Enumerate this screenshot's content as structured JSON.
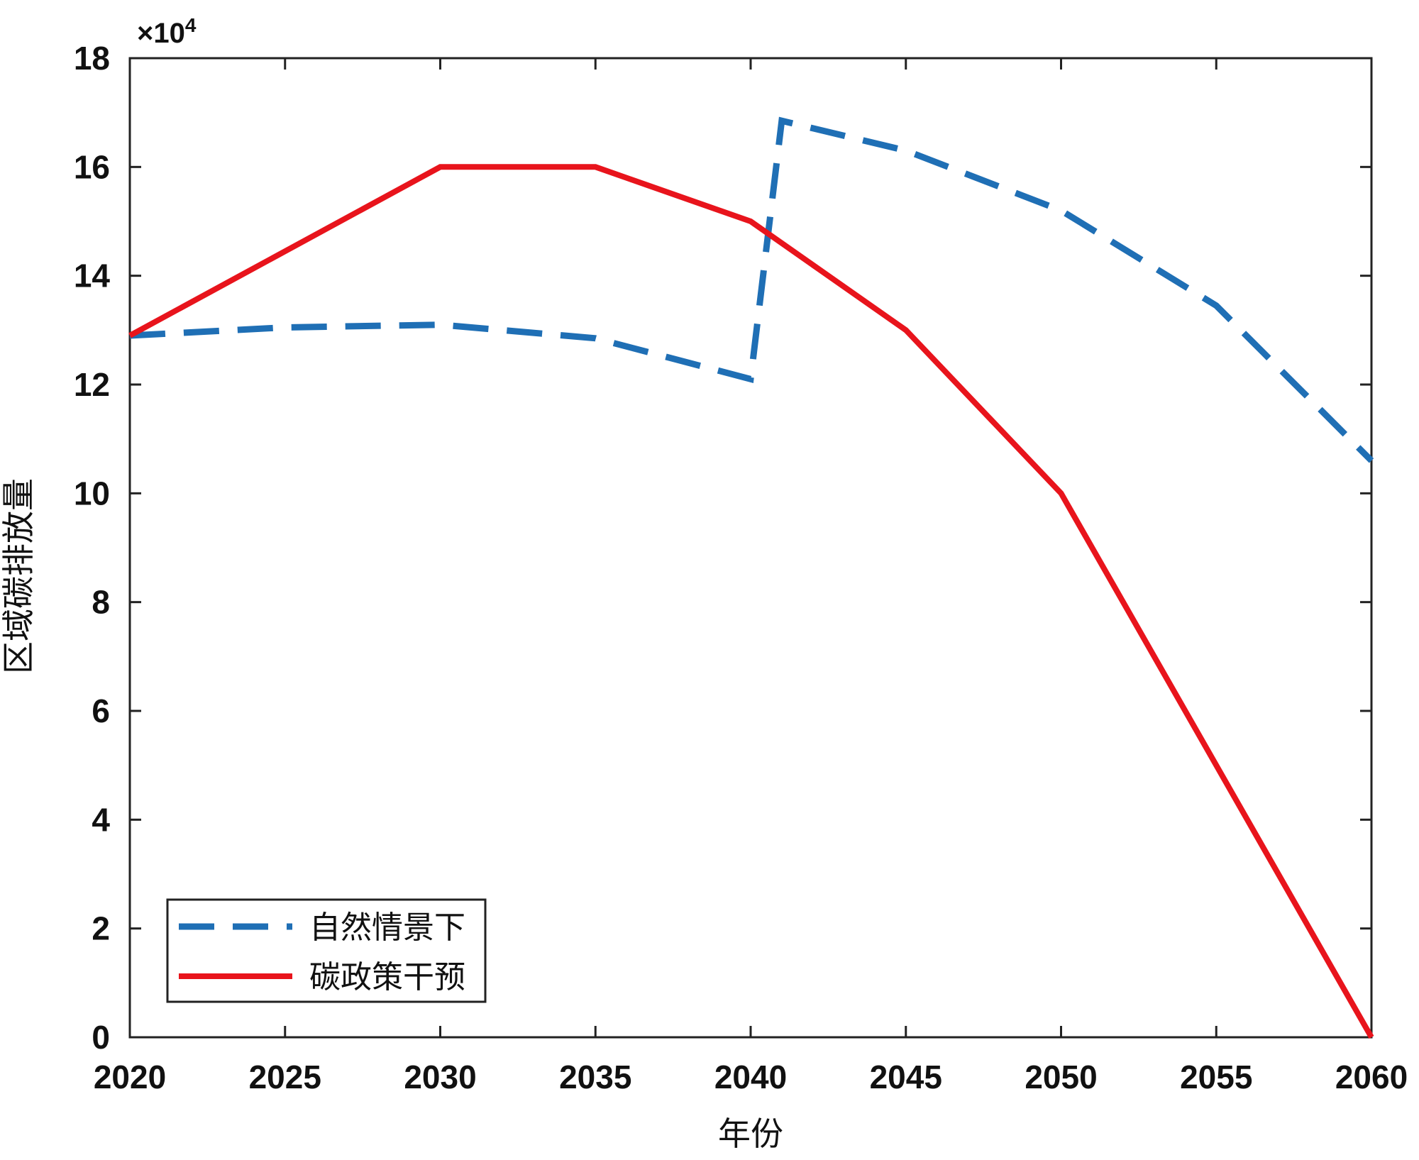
{
  "chart_data": {
    "type": "line",
    "title": "",
    "xlabel": "年份",
    "ylabel": "区域碳排放量",
    "y_multiplier_label": "×10",
    "y_multiplier_exponent": "4",
    "xlim": [
      2020,
      2060
    ],
    "ylim": [
      0,
      18
    ],
    "xticks": [
      2020,
      2025,
      2030,
      2035,
      2040,
      2045,
      2050,
      2055,
      2060
    ],
    "yticks": [
      0,
      2,
      4,
      6,
      8,
      10,
      12,
      14,
      16,
      18
    ],
    "grid": false,
    "legend_position": "bottom-left",
    "series": [
      {
        "name": "自然情景下",
        "style": "dashed",
        "color": "#1f6fb5",
        "x": [
          2020,
          2025,
          2030,
          2035,
          2040,
          2041,
          2045,
          2050,
          2055,
          2060
        ],
        "y": [
          12.9,
          13.05,
          13.1,
          12.85,
          12.1,
          16.85,
          16.3,
          15.2,
          13.45,
          10.6
        ]
      },
      {
        "name": "碳政策干预",
        "style": "solid",
        "color": "#e8141c",
        "x": [
          2020,
          2030,
          2035,
          2040,
          2045,
          2050,
          2060
        ],
        "y": [
          12.9,
          16.0,
          16.0,
          15.0,
          13.0,
          10.0,
          0.0
        ]
      }
    ]
  }
}
